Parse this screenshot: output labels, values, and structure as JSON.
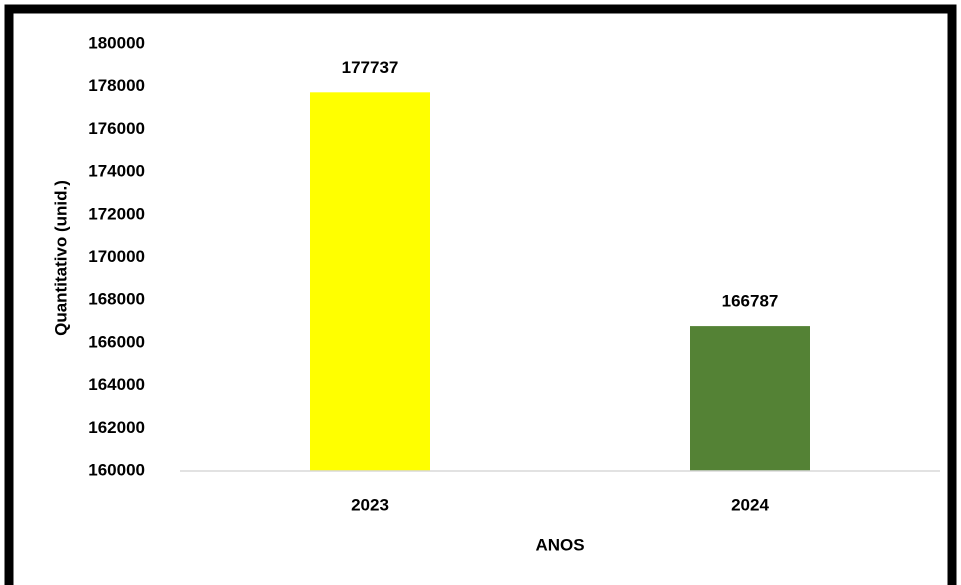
{
  "chart_data": {
    "type": "bar",
    "x_label": "ANOS",
    "y_label": "Quantitativo (unid.)",
    "categories": [
      "2023",
      "2024"
    ],
    "values": [
      177737,
      166787
    ],
    "colors": [
      "#ffff00",
      "#548235"
    ],
    "ylim": [
      160000,
      180000
    ],
    "yticks": [
      160000,
      162000,
      164000,
      166000,
      168000,
      170000,
      172000,
      174000,
      176000,
      178000,
      180000
    ],
    "grid": false,
    "data_labels": true
  }
}
